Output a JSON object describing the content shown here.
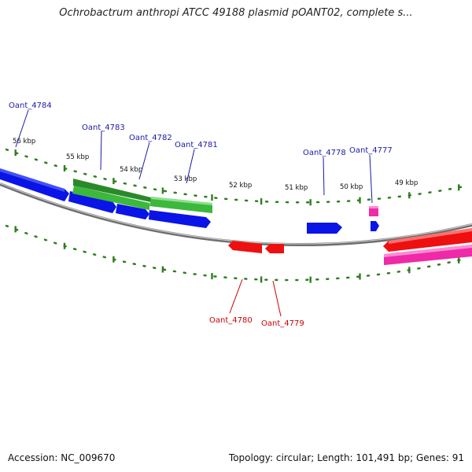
{
  "title": "Ochrobactrum anthropi ATCC 49188 plasmid pOANT02, complete s...",
  "footer": {
    "accession": "Accession: NC_009670",
    "summary": "Topology: circular; Length: 101,491 bp; Genes: 91"
  },
  "colors": {
    "backbone": "#808080",
    "ticks": "#2e7d1f",
    "blue": "#0a14e6",
    "green": "#3cb83c",
    "dark_green": "#2a8a2a",
    "red": "#ee1010",
    "pink": "#ee2aa8",
    "label_blue": "#1a1aa8",
    "label_red": "#cc0000"
  },
  "scale_labels": [
    "56 kbp",
    "55 kbp",
    "54 kbp",
    "53 kbp",
    "52 kbp",
    "51 kbp",
    "50 kbp",
    "49 kbp"
  ],
  "gene_labels": [
    {
      "text": "Oant_4784",
      "strand": "+"
    },
    {
      "text": "Oant_4783",
      "strand": "+"
    },
    {
      "text": "Oant_4782",
      "strand": "+"
    },
    {
      "text": "Oant_4781",
      "strand": "+"
    },
    {
      "text": "Oant_4778",
      "strand": "+"
    },
    {
      "text": "Oant_4777",
      "strand": "+"
    },
    {
      "text": "Oant_4780",
      "strand": "-"
    },
    {
      "text": "Oant_4779",
      "strand": "-"
    }
  ]
}
